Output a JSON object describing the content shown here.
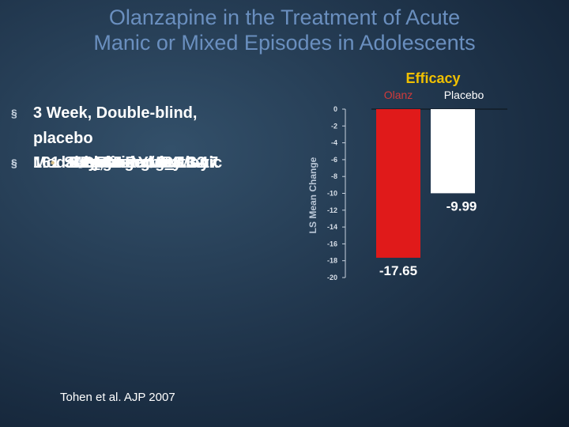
{
  "slide": {
    "title_line1": "Olanzapine in the Treatment of Acute",
    "title_line2": "Manic or Mixed Episodes in Adolescents"
  },
  "bullets": {
    "b1": "3 Week, Double-blind, placebo",
    "b1_1": "2:1 Randomization",
    "b2": "161 Subjects",
    "b2_1": "BP I, Mixed or Manic",
    "b2_2_pre": "Mean Age 15",
    "b2_2_pm": "+",
    "b2_2_post": "1.1 yr.",
    "b2_2_1": "Age Range 13-17",
    "b2_3": "Psychotic 18%",
    "b2_4": "Baseline YMRS 32",
    "b3": "Modal Dose",
    "b3_1_pre": "9.7",
    "b3_1_pm": "+",
    "b3_1_post": "4.5 mg/day",
    "marker_l1": "§",
    "marker_l2": "•",
    "marker_l3": "§"
  },
  "citation": "Tohen et al. AJP 2007",
  "chart_data": {
    "type": "bar",
    "title": "Efficacy",
    "ylabel": "LS Mean Change",
    "categories": [
      "Olanz",
      "Placebo"
    ],
    "values": [
      -17.65,
      -9.99
    ],
    "value_labels": [
      "-17.65",
      "-9.99"
    ],
    "ylim": [
      -20,
      0
    ],
    "yticks": [
      "0",
      "-2",
      "-4",
      "-6",
      "-8",
      "-10",
      "-12",
      "-14",
      "-16",
      "-18",
      "-20"
    ],
    "grid": false,
    "colors": {
      "Olanz": "#e01a1a",
      "Placebo": "#ffffff",
      "title": "#f0c000",
      "category_label": "#d13a3a",
      "placebo_label": "#ffffff"
    }
  }
}
